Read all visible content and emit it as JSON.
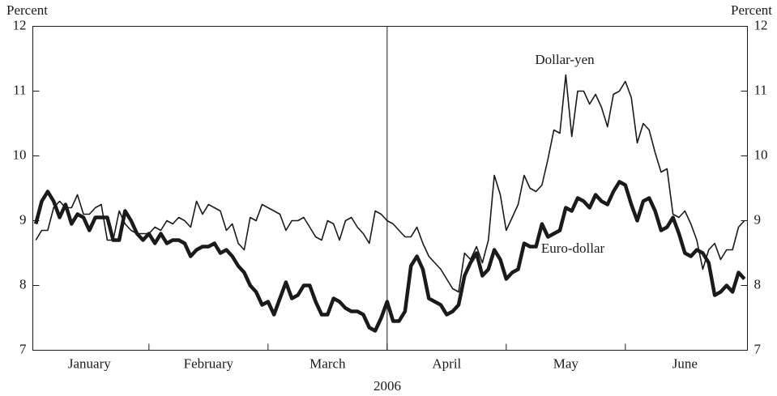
{
  "chart_data": {
    "type": "line",
    "y_label": "Percent",
    "y2_label": "Percent",
    "x_label": "2006",
    "annotations": [
      "Dollar-yen",
      "Euro-dollar"
    ],
    "categories": [
      null,
      null,
      null,
      null,
      null,
      null,
      null,
      null,
      null,
      "January",
      null,
      null,
      null,
      null,
      null,
      null,
      null,
      null,
      null,
      null,
      null,
      null,
      null,
      null,
      null,
      null,
      null,
      null,
      null,
      "February",
      null,
      null,
      null,
      null,
      null,
      null,
      null,
      null,
      null,
      null,
      null,
      null,
      null,
      null,
      null,
      null,
      null,
      null,
      null,
      "March",
      null,
      null,
      null,
      null,
      null,
      null,
      null,
      null,
      null,
      null,
      null,
      null,
      null,
      null,
      null,
      null,
      null,
      null,
      null,
      "April",
      null,
      null,
      null,
      null,
      null,
      null,
      null,
      null,
      null,
      null,
      null,
      null,
      null,
      null,
      null,
      null,
      null,
      null,
      null,
      "May",
      null,
      null,
      null,
      null,
      null,
      null,
      null,
      null,
      null,
      null,
      null,
      null,
      null,
      null,
      null,
      null,
      null,
      null,
      null,
      "June",
      null,
      null,
      null,
      null,
      null,
      null,
      null,
      null,
      null,
      null
    ],
    "ylim": [
      7,
      12
    ],
    "yticks": [
      7,
      8,
      9,
      10,
      11,
      12
    ],
    "y2lim": [
      7,
      12
    ],
    "y2ticks": [
      7,
      8,
      9,
      10,
      11,
      12
    ],
    "series": [
      {
        "name": "Dollar-yen",
        "color": "#1a1a1a",
        "width": 1.6,
        "values": [
          8.7,
          8.85,
          8.85,
          9.2,
          9.3,
          9.2,
          9.2,
          9.4,
          9.1,
          9.1,
          9.2,
          9.25,
          8.7,
          8.7,
          9.15,
          8.95,
          8.85,
          8.8,
          8.8,
          8.8,
          8.9,
          8.85,
          9.0,
          8.95,
          9.05,
          9.0,
          8.9,
          9.3,
          9.1,
          9.25,
          9.2,
          9.15,
          8.85,
          8.95,
          8.65,
          8.55,
          9.05,
          9.0,
          9.25,
          9.2,
          9.15,
          9.1,
          8.85,
          9.0,
          9.0,
          9.05,
          8.9,
          8.75,
          8.7,
          9.0,
          8.95,
          8.7,
          9.0,
          9.05,
          8.9,
          8.8,
          8.65,
          9.15,
          9.1,
          9.0,
          8.95,
          8.85,
          8.75,
          8.75,
          8.9,
          8.65,
          8.45,
          8.35,
          8.25,
          8.1,
          7.95,
          7.9,
          8.5,
          8.4,
          8.6,
          8.35,
          8.7,
          9.7,
          9.4,
          8.85,
          9.05,
          9.25,
          9.7,
          9.5,
          9.45,
          9.55,
          9.95,
          10.4,
          10.35,
          11.25,
          10.3,
          11.0,
          11.0,
          10.8,
          10.95,
          10.75,
          10.45,
          10.95,
          11.0,
          11.15,
          10.9,
          10.2,
          10.5,
          10.4,
          10.05,
          9.75,
          9.8,
          9.1,
          9.05,
          9.15,
          8.95,
          8.7,
          8.25,
          8.55,
          8.65,
          8.4,
          8.55,
          8.55,
          8.9,
          9.0
        ]
      },
      {
        "name": "Euro-dollar",
        "color": "#1a1a1a",
        "width": 4.5,
        "values": [
          8.95,
          9.3,
          9.45,
          9.3,
          9.05,
          9.25,
          8.95,
          9.1,
          9.05,
          8.85,
          9.05,
          9.05,
          9.05,
          8.7,
          8.7,
          9.15,
          9.0,
          8.8,
          8.7,
          8.8,
          8.65,
          8.8,
          8.65,
          8.7,
          8.7,
          8.65,
          8.45,
          8.55,
          8.6,
          8.6,
          8.65,
          8.5,
          8.55,
          8.45,
          8.3,
          8.2,
          8.0,
          7.9,
          7.7,
          7.75,
          7.55,
          7.8,
          8.05,
          7.8,
          7.85,
          8.0,
          8.0,
          7.75,
          7.55,
          7.55,
          7.8,
          7.75,
          7.65,
          7.6,
          7.6,
          7.55,
          7.35,
          7.3,
          7.5,
          7.75,
          7.45,
          7.45,
          7.6,
          8.3,
          8.45,
          8.25,
          7.8,
          7.75,
          7.7,
          7.55,
          7.6,
          7.7,
          8.15,
          8.35,
          8.5,
          8.15,
          8.25,
          8.55,
          8.4,
          8.1,
          8.2,
          8.25,
          8.65,
          8.6,
          8.6,
          8.95,
          8.75,
          8.8,
          8.85,
          9.2,
          9.15,
          9.35,
          9.3,
          9.2,
          9.4,
          9.3,
          9.25,
          9.45,
          9.6,
          9.55,
          9.25,
          9.0,
          9.3,
          9.35,
          9.15,
          8.85,
          8.9,
          9.05,
          8.8,
          8.5,
          8.45,
          8.55,
          8.5,
          8.35,
          7.85,
          7.9,
          8.0,
          7.9,
          8.2,
          8.1
        ]
      }
    ]
  }
}
